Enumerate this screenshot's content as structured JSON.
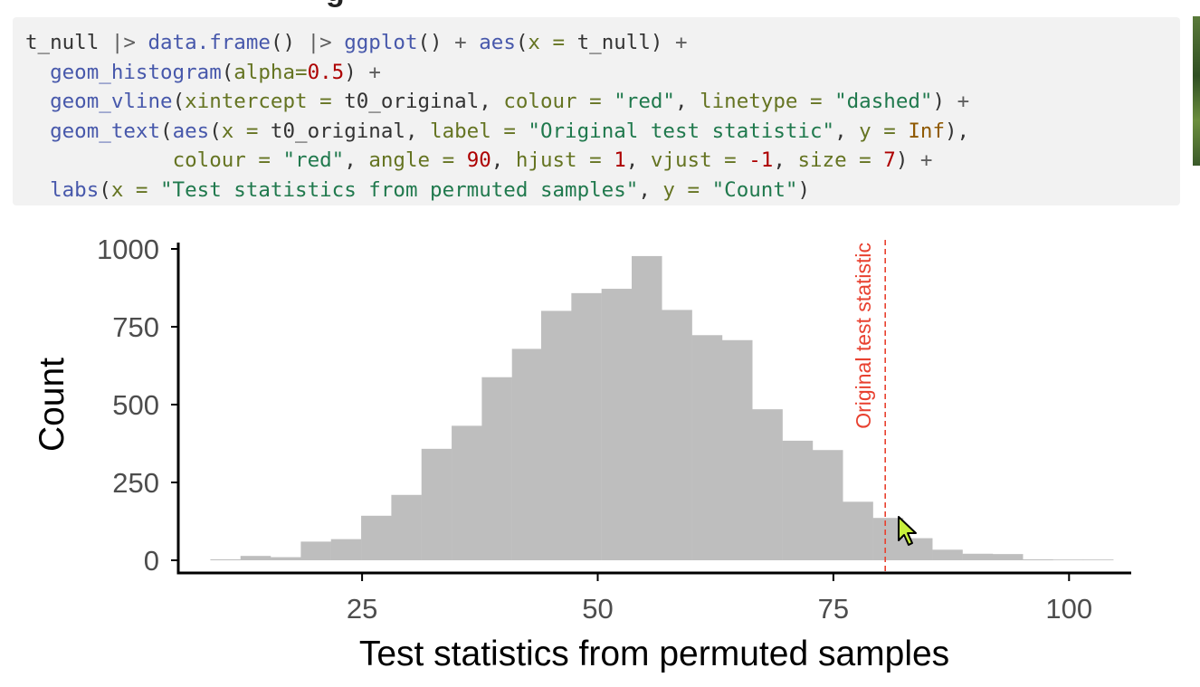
{
  "heading_fragment": "g",
  "code_lines": [
    [
      {
        "t": "t_null ",
        "c": "plain"
      },
      {
        "t": "|>",
        "c": "op"
      },
      {
        "t": " ",
        "c": "plain"
      },
      {
        "t": "data.frame",
        "c": "fn"
      },
      {
        "t": "() ",
        "c": "plain"
      },
      {
        "t": "|>",
        "c": "op"
      },
      {
        "t": " ",
        "c": "plain"
      },
      {
        "t": "ggplot",
        "c": "fn"
      },
      {
        "t": "() ",
        "c": "plain"
      },
      {
        "t": "+",
        "c": "op"
      },
      {
        "t": " ",
        "c": "plain"
      },
      {
        "t": "aes",
        "c": "fn"
      },
      {
        "t": "(",
        "c": "plain"
      },
      {
        "t": "x =",
        "c": "arg"
      },
      {
        "t": " t_null) ",
        "c": "plain"
      },
      {
        "t": "+",
        "c": "op"
      }
    ],
    [
      {
        "t": "  ",
        "c": "plain"
      },
      {
        "t": "geom_histogram",
        "c": "fn"
      },
      {
        "t": "(",
        "c": "plain"
      },
      {
        "t": "alpha=",
        "c": "arg"
      },
      {
        "t": "0.5",
        "c": "num"
      },
      {
        "t": ") ",
        "c": "plain"
      },
      {
        "t": "+",
        "c": "op"
      }
    ],
    [
      {
        "t": "  ",
        "c": "plain"
      },
      {
        "t": "geom_vline",
        "c": "fn"
      },
      {
        "t": "(",
        "c": "plain"
      },
      {
        "t": "xintercept =",
        "c": "arg"
      },
      {
        "t": " t0_original, ",
        "c": "plain"
      },
      {
        "t": "colour =",
        "c": "arg"
      },
      {
        "t": " ",
        "c": "plain"
      },
      {
        "t": "\"red\"",
        "c": "str"
      },
      {
        "t": ", ",
        "c": "plain"
      },
      {
        "t": "linetype =",
        "c": "arg"
      },
      {
        "t": " ",
        "c": "plain"
      },
      {
        "t": "\"dashed\"",
        "c": "str"
      },
      {
        "t": ") ",
        "c": "plain"
      },
      {
        "t": "+",
        "c": "op"
      }
    ],
    [
      {
        "t": "  ",
        "c": "plain"
      },
      {
        "t": "geom_text",
        "c": "fn"
      },
      {
        "t": "(",
        "c": "plain"
      },
      {
        "t": "aes",
        "c": "fn"
      },
      {
        "t": "(",
        "c": "plain"
      },
      {
        "t": "x =",
        "c": "arg"
      },
      {
        "t": " t0_original, ",
        "c": "plain"
      },
      {
        "t": "label =",
        "c": "arg"
      },
      {
        "t": " ",
        "c": "plain"
      },
      {
        "t": "\"Original test statistic\"",
        "c": "str"
      },
      {
        "t": ", ",
        "c": "plain"
      },
      {
        "t": "y =",
        "c": "arg"
      },
      {
        "t": " ",
        "c": "plain"
      },
      {
        "t": "Inf",
        "c": "const"
      },
      {
        "t": "),",
        "c": "plain"
      }
    ],
    [
      {
        "t": "            ",
        "c": "plain"
      },
      {
        "t": "colour =",
        "c": "arg"
      },
      {
        "t": " ",
        "c": "plain"
      },
      {
        "t": "\"red\"",
        "c": "str"
      },
      {
        "t": ", ",
        "c": "plain"
      },
      {
        "t": "angle =",
        "c": "arg"
      },
      {
        "t": " ",
        "c": "plain"
      },
      {
        "t": "90",
        "c": "num"
      },
      {
        "t": ", ",
        "c": "plain"
      },
      {
        "t": "hjust =",
        "c": "arg"
      },
      {
        "t": " ",
        "c": "plain"
      },
      {
        "t": "1",
        "c": "num"
      },
      {
        "t": ", ",
        "c": "plain"
      },
      {
        "t": "vjust =",
        "c": "arg"
      },
      {
        "t": " ",
        "c": "plain"
      },
      {
        "t": "-1",
        "c": "num"
      },
      {
        "t": ", ",
        "c": "plain"
      },
      {
        "t": "size =",
        "c": "arg"
      },
      {
        "t": " ",
        "c": "plain"
      },
      {
        "t": "7",
        "c": "num"
      },
      {
        "t": ") ",
        "c": "plain"
      },
      {
        "t": "+",
        "c": "op"
      }
    ],
    [
      {
        "t": "  ",
        "c": "plain"
      },
      {
        "t": "labs",
        "c": "fn"
      },
      {
        "t": "(",
        "c": "plain"
      },
      {
        "t": "x =",
        "c": "arg"
      },
      {
        "t": " ",
        "c": "plain"
      },
      {
        "t": "\"Test statistics from permuted samples\"",
        "c": "str"
      },
      {
        "t": ", ",
        "c": "plain"
      },
      {
        "t": "y =",
        "c": "arg"
      },
      {
        "t": " ",
        "c": "plain"
      },
      {
        "t": "\"Count\"",
        "c": "str"
      },
      {
        "t": ")",
        "c": "plain"
      }
    ]
  ],
  "colors": {
    "code_bg": "#f2f2f2",
    "bar_fill": "#bebebe",
    "vline": "#e8402f",
    "axis": "#000000",
    "tick_label": "#4d4d4d"
  },
  "chart_data": {
    "type": "bar",
    "xlabel": "Test statistics from permuted samples",
    "ylabel": "Count",
    "xlim": [
      5.5,
      106.5
    ],
    "ylim": [
      0,
      1000
    ],
    "x_ticks": [
      25,
      50,
      75,
      100
    ],
    "y_ticks": [
      0,
      250,
      500,
      750,
      1000
    ],
    "bin_width": 3.19,
    "bins": [
      {
        "start": 8.9,
        "count": 3
      },
      {
        "start": 12.1,
        "count": 14
      },
      {
        "start": 15.3,
        "count": 10
      },
      {
        "start": 18.5,
        "count": 60
      },
      {
        "start": 21.7,
        "count": 68
      },
      {
        "start": 24.9,
        "count": 143
      },
      {
        "start": 28.1,
        "count": 210
      },
      {
        "start": 31.3,
        "count": 358
      },
      {
        "start": 34.5,
        "count": 432
      },
      {
        "start": 37.7,
        "count": 588
      },
      {
        "start": 40.9,
        "count": 679
      },
      {
        "start": 44.0,
        "count": 801
      },
      {
        "start": 47.2,
        "count": 858
      },
      {
        "start": 50.4,
        "count": 872
      },
      {
        "start": 53.6,
        "count": 977
      },
      {
        "start": 56.8,
        "count": 804
      },
      {
        "start": 60.0,
        "count": 723
      },
      {
        "start": 63.2,
        "count": 707
      },
      {
        "start": 66.4,
        "count": 485
      },
      {
        "start": 69.6,
        "count": 384
      },
      {
        "start": 72.8,
        "count": 354
      },
      {
        "start": 76.0,
        "count": 188
      },
      {
        "start": 79.2,
        "count": 136
      },
      {
        "start": 82.3,
        "count": 71
      },
      {
        "start": 85.5,
        "count": 34
      },
      {
        "start": 88.7,
        "count": 21
      },
      {
        "start": 91.9,
        "count": 20
      },
      {
        "start": 95.1,
        "count": 3
      },
      {
        "start": 98.3,
        "count": 0
      },
      {
        "start": 101.5,
        "count": 2
      }
    ],
    "vline": {
      "x": 80.5,
      "label": "Original test statistic",
      "style": "dashed"
    },
    "grid": false,
    "legend": "none"
  }
}
